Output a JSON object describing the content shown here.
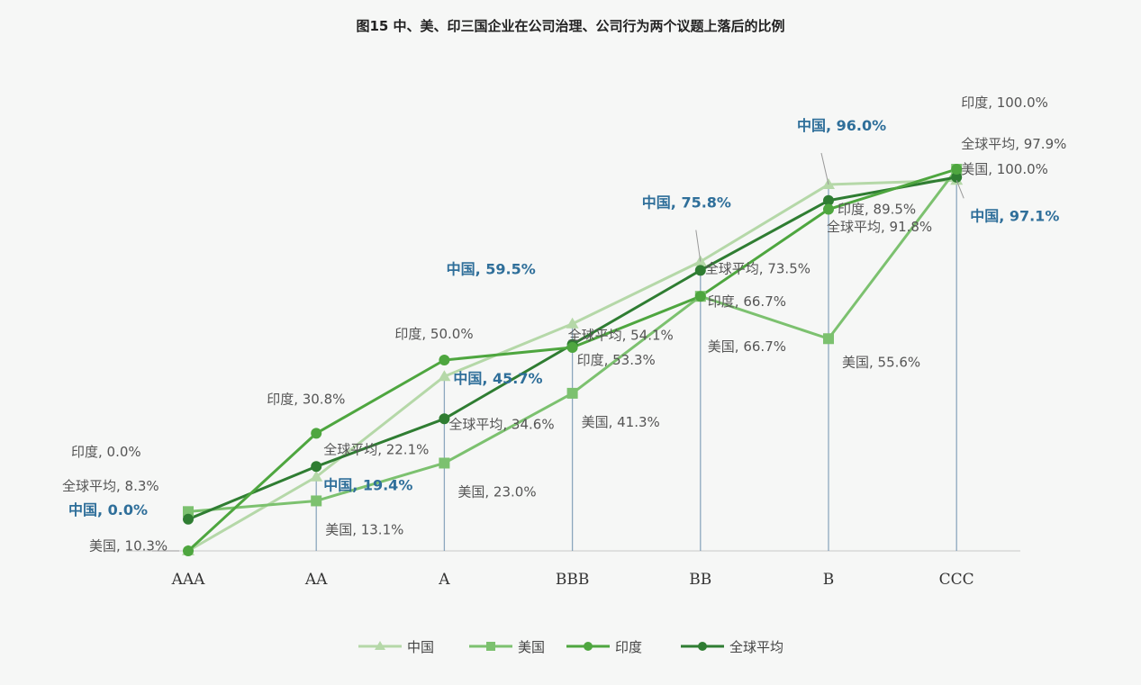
{
  "chart_data": {
    "type": "line",
    "title": "图15 中、美、印三国企业在公司治理、公司行为两个议题上落后的比例",
    "categories": [
      "AAA",
      "AA",
      "A",
      "BBB",
      "BB",
      "B",
      "CCC"
    ],
    "ylim": [
      0,
      100
    ],
    "grid": false,
    "legend_position": "bottom",
    "series": [
      {
        "name": "中国",
        "marker": "triangle",
        "color": "#b5d8a8",
        "values": [
          0.0,
          19.4,
          45.7,
          59.5,
          75.8,
          96.0,
          97.1
        ],
        "labels": [
          "中国, 0.0%",
          "中国, 19.4%",
          "中国, 45.7%",
          "中国, 59.5%",
          "中国, 75.8%",
          "中国, 96.0%",
          "中国, 97.1%"
        ]
      },
      {
        "name": "美国",
        "marker": "square",
        "color": "#7cc16f",
        "values": [
          10.3,
          13.1,
          23.0,
          41.3,
          66.7,
          55.6,
          100.0
        ],
        "labels": [
          "美国, 10.3%",
          "美国, 13.1%",
          "美国, 23.0%",
          "美国, 41.3%",
          "美国, 66.7%",
          "美国, 55.6%",
          "美国, 100.0%"
        ]
      },
      {
        "name": "印度",
        "marker": "circle",
        "color": "#4ea63f",
        "values": [
          0.0,
          30.8,
          50.0,
          53.3,
          66.7,
          89.5,
          100.0
        ],
        "labels": [
          "印度, 0.0%",
          "印度, 30.8%",
          "印度, 50.0%",
          "印度, 53.3%",
          "印度, 66.7%",
          "印度, 89.5%",
          "印度, 100.0%"
        ]
      },
      {
        "name": "全球平均",
        "marker": "circle",
        "color": "#2f7d32",
        "values": [
          8.3,
          22.1,
          34.6,
          54.1,
          73.5,
          91.8,
          97.9
        ],
        "labels": [
          "全球平均, 8.3%",
          "全球平均, 22.1%",
          "全球平均, 34.6%",
          "全球平均, 54.1%",
          "全球平均, 73.5%",
          "全球平均, 91.8%",
          "全球平均, 97.9%"
        ]
      }
    ]
  },
  "colors": {
    "china_label": "#2f6f9a",
    "axis": "#c8c8c8",
    "drop_line": "#7a9ab5"
  }
}
